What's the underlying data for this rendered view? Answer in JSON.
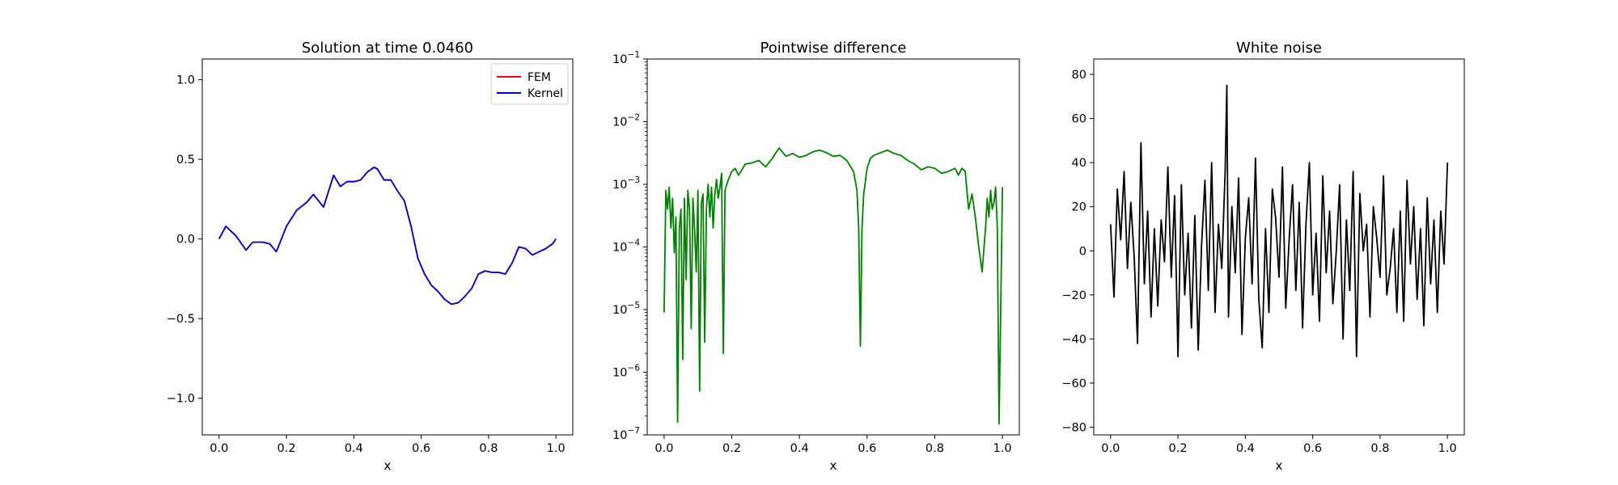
{
  "figure": {
    "background": "#ffffff"
  },
  "chart_data": [
    {
      "type": "line",
      "title": "Solution at time 0.0460",
      "xlabel": "x",
      "ylabel": "",
      "xlim": [
        -0.05,
        1.05
      ],
      "ylim": [
        -1.23,
        1.13
      ],
      "yscale": "linear",
      "xticks": [
        "0.0",
        "0.2",
        "0.4",
        "0.6",
        "0.8",
        "1.0"
      ],
      "yticks": [
        "−1.0",
        "−0.5",
        "0.0",
        "0.5",
        "1.0"
      ],
      "grid": false,
      "legend": {
        "location": "upper right",
        "entries": [
          "FEM",
          "Kernel"
        ]
      },
      "series": [
        {
          "name": "FEM",
          "color": "#ff0000",
          "x": [
            0.0,
            0.02,
            0.05,
            0.08,
            0.1,
            0.13,
            0.15,
            0.17,
            0.2,
            0.23,
            0.26,
            0.28,
            0.31,
            0.34,
            0.36,
            0.38,
            0.4,
            0.42,
            0.44,
            0.46,
            0.47,
            0.49,
            0.51,
            0.53,
            0.55,
            0.57,
            0.59,
            0.61,
            0.63,
            0.65,
            0.67,
            0.69,
            0.71,
            0.73,
            0.75,
            0.77,
            0.79,
            0.81,
            0.83,
            0.85,
            0.87,
            0.89,
            0.91,
            0.93,
            0.95,
            0.97,
            0.99,
            1.0
          ],
          "y": [
            0.0,
            0.08,
            0.02,
            -0.07,
            -0.02,
            -0.02,
            -0.03,
            -0.08,
            0.08,
            0.18,
            0.23,
            0.28,
            0.2,
            0.4,
            0.33,
            0.36,
            0.36,
            0.37,
            0.42,
            0.45,
            0.44,
            0.37,
            0.37,
            0.3,
            0.24,
            0.08,
            -0.12,
            -0.22,
            -0.29,
            -0.33,
            -0.38,
            -0.41,
            -0.4,
            -0.36,
            -0.31,
            -0.22,
            -0.2,
            -0.21,
            -0.21,
            -0.22,
            -0.15,
            -0.05,
            -0.06,
            -0.1,
            -0.08,
            -0.06,
            -0.03,
            0.0
          ]
        },
        {
          "name": "Kernel",
          "color": "#0000cc",
          "x": [
            0.0,
            0.02,
            0.05,
            0.08,
            0.1,
            0.13,
            0.15,
            0.17,
            0.2,
            0.23,
            0.26,
            0.28,
            0.31,
            0.34,
            0.36,
            0.38,
            0.4,
            0.42,
            0.44,
            0.46,
            0.47,
            0.49,
            0.51,
            0.53,
            0.55,
            0.57,
            0.59,
            0.61,
            0.63,
            0.65,
            0.67,
            0.69,
            0.71,
            0.73,
            0.75,
            0.77,
            0.79,
            0.81,
            0.83,
            0.85,
            0.87,
            0.89,
            0.91,
            0.93,
            0.95,
            0.97,
            0.99,
            1.0
          ],
          "y": [
            0.0,
            0.08,
            0.02,
            -0.07,
            -0.02,
            -0.02,
            -0.03,
            -0.08,
            0.08,
            0.18,
            0.23,
            0.28,
            0.2,
            0.4,
            0.33,
            0.36,
            0.36,
            0.37,
            0.42,
            0.45,
            0.44,
            0.37,
            0.37,
            0.3,
            0.24,
            0.08,
            -0.12,
            -0.22,
            -0.29,
            -0.33,
            -0.38,
            -0.41,
            -0.4,
            -0.36,
            -0.31,
            -0.22,
            -0.2,
            -0.21,
            -0.21,
            -0.22,
            -0.15,
            -0.05,
            -0.06,
            -0.1,
            -0.08,
            -0.06,
            -0.03,
            0.0
          ]
        }
      ]
    },
    {
      "type": "line",
      "title": "Pointwise difference",
      "xlabel": "x",
      "ylabel": "",
      "xlim": [
        -0.05,
        1.05
      ],
      "ylim": [
        1e-07,
        0.1
      ],
      "yscale": "log",
      "xticks": [
        "0.0",
        "0.2",
        "0.4",
        "0.6",
        "0.8",
        "1.0"
      ],
      "yticks": [
        "10^-7",
        "10^-6",
        "10^-5",
        "10^-4",
        "10^-3",
        "10^-2",
        "10^-1"
      ],
      "grid": false,
      "series": [
        {
          "name": "",
          "color": "#008000",
          "x": [
            0.0,
            0.005,
            0.01,
            0.015,
            0.02,
            0.025,
            0.03,
            0.035,
            0.04,
            0.045,
            0.05,
            0.055,
            0.06,
            0.065,
            0.07,
            0.075,
            0.08,
            0.085,
            0.09,
            0.095,
            0.1,
            0.105,
            0.11,
            0.115,
            0.12,
            0.125,
            0.13,
            0.135,
            0.14,
            0.145,
            0.15,
            0.155,
            0.16,
            0.165,
            0.17,
            0.175,
            0.18,
            0.19,
            0.2,
            0.21,
            0.22,
            0.24,
            0.26,
            0.28,
            0.3,
            0.32,
            0.34,
            0.36,
            0.38,
            0.4,
            0.42,
            0.44,
            0.46,
            0.48,
            0.5,
            0.52,
            0.54,
            0.56,
            0.57,
            0.575,
            0.58,
            0.585,
            0.59,
            0.6,
            0.61,
            0.62,
            0.64,
            0.66,
            0.68,
            0.7,
            0.72,
            0.74,
            0.76,
            0.78,
            0.8,
            0.82,
            0.84,
            0.86,
            0.87,
            0.88,
            0.89,
            0.9,
            0.91,
            0.92,
            0.93,
            0.94,
            0.95,
            0.955,
            0.96,
            0.965,
            0.97,
            0.975,
            0.98,
            0.985,
            0.99,
            0.995,
            1.0
          ],
          "y": [
            9e-06,
            0.0008,
            0.0004,
            0.0009,
            0.0002,
            0.0006,
            8e-05,
            0.0003,
            1.6e-07,
            0.0002,
            0.0004,
            1.6e-06,
            0.0006,
            3e-05,
            0.0008,
            0.0004,
            5e-06,
            0.0006,
            0.0002,
            4e-05,
            0.0008,
            5e-07,
            0.0005,
            0.0007,
            3e-06,
            0.0004,
            0.001,
            0.0003,
            0.0009,
            0.0002,
            0.0007,
            0.0012,
            0.0006,
            0.0009,
            0.0015,
            2e-06,
            0.0008,
            0.0012,
            0.0016,
            0.0018,
            0.0014,
            0.0021,
            0.0022,
            0.0024,
            0.0019,
            0.0026,
            0.0038,
            0.0028,
            0.0031,
            0.0027,
            0.0029,
            0.0033,
            0.0035,
            0.0032,
            0.0028,
            0.0029,
            0.0024,
            0.0016,
            0.0008,
            0.0002,
            2.6e-06,
            0.0002,
            0.0007,
            0.0018,
            0.0026,
            0.0029,
            0.0032,
            0.0035,
            0.0031,
            0.0029,
            0.0024,
            0.0021,
            0.0017,
            0.0019,
            0.0018,
            0.0015,
            0.0016,
            0.0018,
            0.0014,
            0.0018,
            0.0016,
            0.0004,
            0.0007,
            0.0003,
            0.0001,
            4e-05,
            0.0002,
            0.0006,
            0.0003,
            0.0008,
            0.0004,
            0.0005,
            0.0009,
            0.0002,
            1.5e-07,
            1e-05,
            0.0009
          ]
        }
      ]
    },
    {
      "type": "line",
      "title": "White noise",
      "xlabel": "x",
      "ylabel": "",
      "xlim": [
        -0.05,
        1.05
      ],
      "ylim": [
        -83.5,
        87
      ],
      "yscale": "linear",
      "xticks": [
        "0.0",
        "0.2",
        "0.4",
        "0.6",
        "0.8",
        "1.0"
      ],
      "yticks": [
        "−80",
        "−60",
        "−40",
        "−20",
        "0",
        "20",
        "40",
        "60",
        "80"
      ],
      "grid": false,
      "series": [
        {
          "name": "",
          "color": "#000000",
          "x": [
            0.0,
            0.01,
            0.02,
            0.03,
            0.04,
            0.05,
            0.06,
            0.07,
            0.08,
            0.09,
            0.1,
            0.11,
            0.12,
            0.13,
            0.14,
            0.15,
            0.16,
            0.17,
            0.18,
            0.19,
            0.2,
            0.21,
            0.22,
            0.23,
            0.24,
            0.25,
            0.26,
            0.27,
            0.28,
            0.29,
            0.3,
            0.31,
            0.32,
            0.33,
            0.34,
            0.345,
            0.35,
            0.36,
            0.37,
            0.38,
            0.39,
            0.4,
            0.41,
            0.42,
            0.43,
            0.44,
            0.45,
            0.46,
            0.47,
            0.48,
            0.49,
            0.5,
            0.51,
            0.52,
            0.53,
            0.54,
            0.55,
            0.56,
            0.57,
            0.58,
            0.59,
            0.6,
            0.61,
            0.62,
            0.63,
            0.64,
            0.65,
            0.66,
            0.67,
            0.68,
            0.69,
            0.7,
            0.71,
            0.72,
            0.73,
            0.74,
            0.75,
            0.76,
            0.77,
            0.78,
            0.79,
            0.8,
            0.81,
            0.82,
            0.83,
            0.84,
            0.85,
            0.86,
            0.87,
            0.88,
            0.89,
            0.9,
            0.91,
            0.92,
            0.93,
            0.94,
            0.95,
            0.96,
            0.97,
            0.98,
            0.99,
            1.0
          ],
          "y": [
            12,
            -21,
            28,
            5,
            36,
            -8,
            22,
            -3,
            -42,
            49,
            -15,
            18,
            -30,
            10,
            -25,
            14,
            -5,
            38,
            -12,
            25,
            -48,
            30,
            -20,
            8,
            -35,
            16,
            -45,
            2,
            32,
            -18,
            40,
            -28,
            12,
            -8,
            36,
            75,
            -30,
            20,
            -10,
            33,
            -38,
            6,
            24,
            -15,
            42,
            -22,
            -44,
            10,
            -28,
            28,
            15,
            -12,
            38,
            -26,
            5,
            30,
            -18,
            22,
            -35,
            12,
            40,
            -20,
            8,
            -32,
            34,
            -10,
            18,
            -24,
            0,
            30,
            -40,
            14,
            -18,
            36,
            -48,
            26,
            0,
            12,
            -30,
            20,
            6,
            -12,
            34,
            -20,
            -8,
            10,
            -28,
            18,
            -32,
            32,
            -6,
            20,
            -22,
            10,
            -34,
            24,
            -15,
            14,
            -28,
            18,
            -6,
            40
          ]
        }
      ]
    }
  ]
}
